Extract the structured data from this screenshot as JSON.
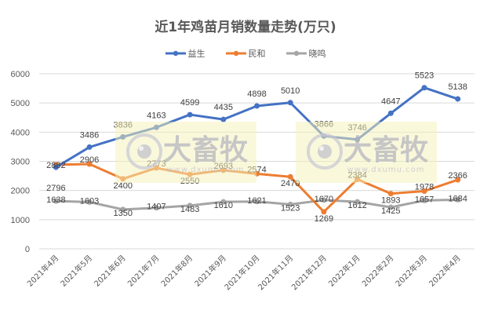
{
  "title": "近1年鸡苗月销数量走势(万只)",
  "legend": [
    {
      "name": "益生",
      "color": "#4472C4"
    },
    {
      "name": "民和",
      "color": "#ED7D31"
    },
    {
      "name": "晓鸣",
      "color": "#A5A5A5"
    }
  ],
  "watermark": {
    "text": "大畜牧",
    "url": "www.dxumu.com"
  },
  "chart_data": {
    "type": "line",
    "title": "近1年鸡苗月销数量走势(万只)",
    "xlabel": "",
    "ylabel": "",
    "ylim": [
      0,
      6000
    ],
    "yticks": [
      0,
      1000,
      2000,
      3000,
      4000,
      5000,
      6000
    ],
    "grid": true,
    "legend_position": "top",
    "categories": [
      "2021年4月",
      "2021年5月",
      "2021年6月",
      "2021年7月",
      "2021年8月",
      "2021年9月",
      "2021年10月",
      "2021年11月",
      "2021年12月",
      "2022年1月",
      "2022年2月",
      "2022年3月",
      "2022年4月"
    ],
    "series": [
      {
        "name": "益生",
        "color": "#4472C4",
        "values": [
          2796,
          3486,
          3836,
          4163,
          4599,
          4435,
          4898,
          5010,
          3866,
          3746,
          4647,
          5523,
          5138
        ]
      },
      {
        "name": "民和",
        "color": "#ED7D31",
        "values": [
          2882,
          2906,
          2400,
          2773,
          2550,
          2693,
          2574,
          2470,
          1269,
          2384,
          1893,
          1978,
          2366
        ]
      },
      {
        "name": "晓鸣",
        "color": "#A5A5A5",
        "values": [
          1638,
          1603,
          1350,
          1407,
          1483,
          1610,
          1621,
          1523,
          1670,
          1612,
          1425,
          1657,
          1684
        ]
      }
    ]
  }
}
